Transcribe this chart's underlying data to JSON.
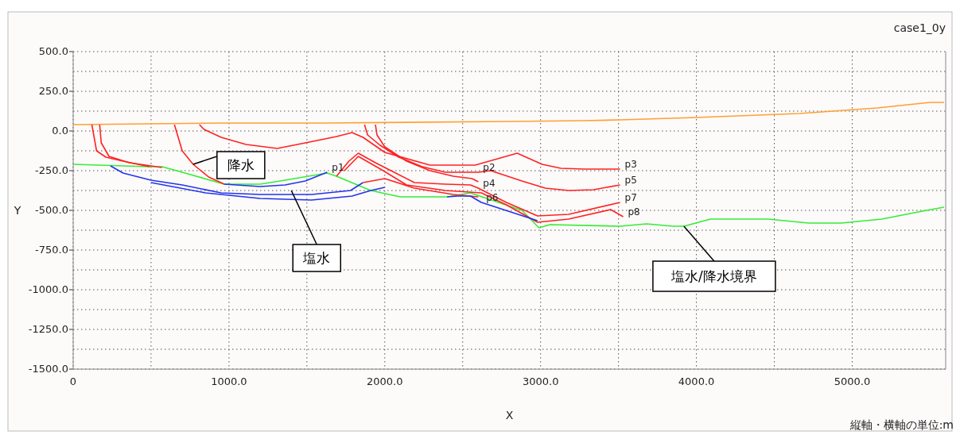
{
  "chart_data": {
    "type": "line",
    "title": "case1_0y",
    "xlabel": "X",
    "ylabel": "Y",
    "xlim": [
      0,
      5600
    ],
    "ylim": [
      -1500,
      500
    ],
    "xticks": [
      0,
      {
        "value": 500,
        "label": null
      },
      {
        "value": 1000,
        "label": "1000.0"
      },
      {
        "value": 1500,
        "label": null
      },
      {
        "value": 2000,
        "label": "2000.0"
      },
      {
        "value": 2500,
        "label": null
      },
      {
        "value": 3000,
        "label": "3000.0"
      },
      {
        "value": 3500,
        "label": null
      },
      {
        "value": 4000,
        "label": "4000.0"
      },
      {
        "value": 4500,
        "label": null
      },
      {
        "value": 5000,
        "label": "5000.0"
      }
    ],
    "yticks": [
      {
        "value": -1500,
        "label": "-1500.0"
      },
      {
        "value": -1375,
        "label": null
      },
      {
        "value": -1250,
        "label": "-1250.0"
      },
      {
        "value": -1125,
        "label": null
      },
      {
        "value": -1000,
        "label": "-1000.0"
      },
      {
        "value": -875,
        "label": null
      },
      {
        "value": -750,
        "label": "-750.0"
      },
      {
        "value": -625,
        "label": null
      },
      {
        "value": -500,
        "label": "-500.0"
      },
      {
        "value": -375,
        "label": null
      },
      {
        "value": -250,
        "label": "-250.0"
      },
      {
        "value": -125,
        "label": null
      },
      {
        "value": 0,
        "label": "0.0"
      },
      {
        "value": 125,
        "label": null
      },
      {
        "value": 250,
        "label": "250.0"
      },
      {
        "value": 375,
        "label": null
      },
      {
        "value": 500,
        "label": "500.0"
      }
    ],
    "grid": true,
    "line_style": "solid",
    "series": [
      {
        "color": "#ffa030",
        "x": [
          0,
          950,
          1610,
          2800,
          3280,
          3510,
          4000,
          4660,
          5160,
          5500,
          5590
        ],
        "values": [
          40,
          50,
          50,
          60,
          65,
          70,
          85,
          110,
          145,
          180,
          180
        ]
      },
      {
        "color": "#33ee33",
        "x": [
          0,
          490,
          570,
          700,
          970,
          1200,
          1360,
          1630,
          1690,
          1910,
          2100,
          2400,
          2550,
          2880,
          2990,
          3060,
          3510,
          3680,
          3850,
          3920,
          4090,
          4460,
          4720,
          4930,
          5190,
          5450,
          5590
        ],
        "values": [
          -210,
          -225,
          -225,
          -260,
          -335,
          -335,
          -310,
          -265,
          -285,
          -375,
          -415,
          -415,
          -390,
          -500,
          -610,
          -590,
          -600,
          -585,
          -600,
          -600,
          -555,
          -555,
          -580,
          -580,
          -555,
          -505,
          -480
        ]
      },
      {
        "color": "#ff2222",
        "x": [
          120,
          150,
          210,
          320,
          490
        ],
        "values": [
          40,
          -125,
          -165,
          -190,
          -225
        ]
      },
      {
        "color": "#ff2222",
        "x": [
          170,
          180,
          230,
          360,
          570
        ],
        "values": [
          40,
          -75,
          -160,
          -200,
          -230
        ]
      },
      {
        "color": "#ff2222",
        "x": [
          650,
          700,
          770,
          870,
          970
        ],
        "values": [
          40,
          -125,
          -210,
          -290,
          -335
        ]
      },
      {
        "color": "#2233ee",
        "x": [
          970,
          1200,
          1360,
          1490,
          1630
        ],
        "values": [
          -335,
          -350,
          -340,
          -315,
          -260
        ]
      },
      {
        "color": "#ff2222",
        "x": [
          810,
          840,
          950,
          1110,
          1310,
          1490,
          1690,
          1790,
          1860,
          2000,
          2290,
          2580,
          2850,
          3010,
          3130,
          3280,
          3510
        ],
        "values": [
          40,
          10,
          -40,
          -85,
          -110,
          -75,
          -35,
          -10,
          -40,
          -135,
          -215,
          -215,
          -140,
          -210,
          -235,
          -240,
          -240
        ]
      },
      {
        "color": "#ff2222",
        "x": [
          1870,
          1890,
          1970,
          2090,
          2240,
          2390,
          2600,
          2680,
          2880,
          3030,
          3180,
          3340,
          3510
        ],
        "values": [
          40,
          -25,
          -90,
          -165,
          -225,
          -260,
          -260,
          -250,
          -315,
          -360,
          -375,
          -370,
          -340
        ]
      },
      {
        "color": "#ff2222",
        "x": [
          1940,
          1950,
          2000,
          2140,
          2290,
          2440,
          2560,
          2600
        ],
        "values": [
          40,
          -25,
          -100,
          -190,
          -250,
          -285,
          -300,
          -320
        ]
      },
      {
        "color": "#ff2222",
        "x": [
          1690,
          1770,
          1830,
          1940,
          2040,
          2190,
          2390,
          2550,
          2600,
          2780,
          2980,
          3180,
          3510
        ],
        "values": [
          -285,
          -190,
          -140,
          -200,
          -250,
          -325,
          -335,
          -340,
          -360,
          -450,
          -535,
          -525,
          -450
        ]
      },
      {
        "color": "#ff2222",
        "x": [
          1740,
          1830,
          1990,
          2140,
          2390,
          2620,
          2780,
          2980,
          3180,
          3450,
          3530
        ],
        "values": [
          -250,
          -160,
          -250,
          -340,
          -375,
          -390,
          -465,
          -575,
          -555,
          -495,
          -540
        ]
      },
      {
        "color": "#ff2222",
        "x": [
          1860,
          2000,
          2190,
          2440,
          2600
        ],
        "values": [
          -325,
          -300,
          -360,
          -400,
          -415
        ]
      },
      {
        "color": "#2233ee",
        "x": [
          240,
          320,
          500,
          700,
          950,
          1200,
          1530,
          1780,
          1860
        ],
        "values": [
          -220,
          -265,
          -310,
          -340,
          -390,
          -400,
          -400,
          -375,
          -325
        ]
      },
      {
        "color": "#2233ee",
        "x": [
          500,
          850,
          1200,
          1530,
          1790,
          1910,
          2000
        ],
        "values": [
          -325,
          -390,
          -425,
          -435,
          -410,
          -375,
          -355
        ]
      },
      {
        "color": "#2233ee",
        "x": [
          2400,
          2470,
          2550,
          2620,
          2980
        ],
        "values": [
          -415,
          -410,
          -410,
          -450,
          -565
        ]
      }
    ],
    "annotations": [
      {
        "text": "降水",
        "x": 770,
        "y": -210
      },
      {
        "text": "塩水",
        "x": 1400,
        "y": -375
      },
      {
        "text": "塩水/降水境界",
        "x": 3920,
        "y": -600
      },
      {
        "text": "p1",
        "x": 1630,
        "y": -260
      },
      {
        "text": "p2",
        "x": 2600,
        "y": -260
      },
      {
        "text": "p3",
        "x": 3510,
        "y": -240
      },
      {
        "text": "p4",
        "x": 2600,
        "y": -360
      },
      {
        "text": "p5",
        "x": 3510,
        "y": -340
      },
      {
        "text": "p6",
        "x": 2620,
        "y": -450
      },
      {
        "text": "p7",
        "x": 3510,
        "y": -450
      },
      {
        "text": "p8",
        "x": 3530,
        "y": -540
      },
      "縦軸・横軸の単位:m"
    ]
  }
}
